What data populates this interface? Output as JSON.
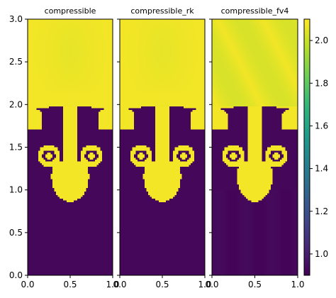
{
  "chart_data": {
    "type": "heatmap",
    "colormap": "viridis",
    "panels": [
      {
        "title": "compressible",
        "variant": "smooth"
      },
      {
        "title": "compressible_rk",
        "variant": "smooth"
      },
      {
        "title": "compressible_fv4",
        "variant": "fv4"
      }
    ],
    "x": {
      "range": [
        0.0,
        1.0
      ],
      "ticks": [
        0.0,
        0.5,
        1.0
      ],
      "tick_labels": [
        "0.0",
        "0.5",
        "1.0"
      ]
    },
    "y": {
      "range": [
        0.0,
        3.0
      ],
      "ticks": [
        0.0,
        0.5,
        1.0,
        1.5,
        2.0,
        2.5,
        3.0
      ],
      "tick_labels": [
        "0.0",
        "0.5",
        "1.0",
        "1.5",
        "2.0",
        "2.5",
        "3.0"
      ]
    },
    "colorbar": {
      "range": [
        0.9,
        2.1
      ],
      "ticks": [
        1.0,
        1.2,
        1.4,
        1.6,
        1.8,
        2.0
      ],
      "tick_labels": [
        "1.0",
        "1.2",
        "1.4",
        "1.6",
        "1.8",
        "2.0"
      ]
    },
    "field": {
      "heavy_value": 2.08,
      "light_value": 0.92,
      "interface_y": 1.97,
      "spike_bottom_y": 0.86,
      "vortex_centers": [
        [
          0.25,
          1.4
        ],
        [
          0.75,
          1.4
        ]
      ],
      "grid": [
        48,
        144
      ]
    }
  }
}
